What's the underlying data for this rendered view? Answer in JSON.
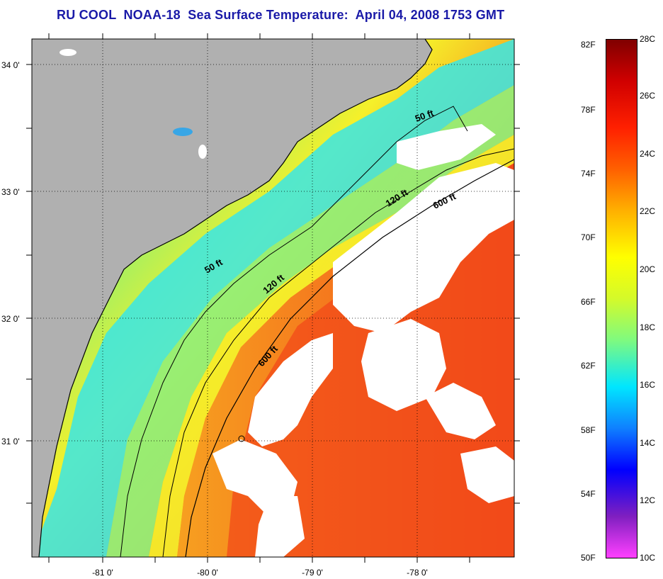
{
  "title": "RU COOL  NOAA-18  Sea Surface Temperature:  April 04, 2008 1753 GMT",
  "map": {
    "x_ticks": [
      "-81 0'",
      "-80 0'",
      "-79 0'",
      "-78 0'"
    ],
    "y_ticks": [
      "34 0'",
      "33 0'",
      "32 0'",
      "31 0'"
    ],
    "isobaths": [
      {
        "label": "50 ft",
        "text": "50 ft"
      },
      {
        "label": "50 ft",
        "text": "50 ft"
      },
      {
        "label": "120 ft",
        "text": "120 ft"
      },
      {
        "label": "120 ft",
        "text": "120 ft"
      },
      {
        "label": "600 ft",
        "text": "600 ft"
      },
      {
        "label": "600 ft",
        "text": "600 ft"
      }
    ],
    "colors": {
      "land": "#b0b0b0",
      "cloud": "#ffffff",
      "cold_coast": "#38e6e6",
      "mid_shelf": "#7ff07a",
      "outer_shelf": "#f5f02a",
      "slope": "#f7a020",
      "gulf_stream": "#f24a1a"
    }
  },
  "colorbar": {
    "fahrenheit": [
      "82F",
      "78F",
      "74F",
      "70F",
      "66F",
      "62F",
      "58F",
      "54F",
      "50F"
    ],
    "celsius": [
      "28C",
      "26C",
      "24C",
      "22C",
      "20C",
      "18C",
      "16C",
      "14C",
      "12C",
      "10C"
    ],
    "gradient_stops": [
      "#ff40ff",
      "#7f1fc0",
      "#0000ff",
      "#0f80ff",
      "#00e6ff",
      "#7ffa7f",
      "#d4fa2a",
      "#ffff00",
      "#ffb000",
      "#ff6000",
      "#ff2000",
      "#d00000",
      "#800000"
    ]
  }
}
